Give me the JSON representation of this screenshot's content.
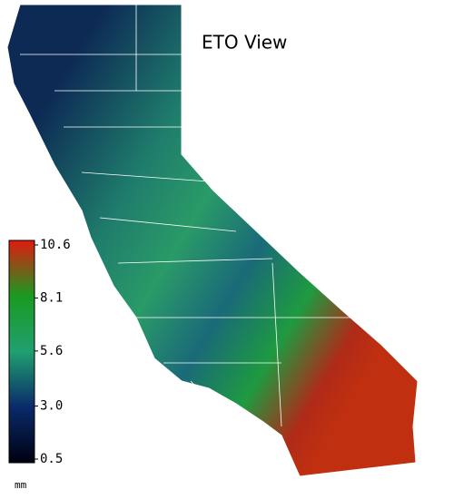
{
  "title": "ETO View",
  "legend": {
    "unit": "mm",
    "ticks": [
      10.6,
      8.1,
      5.6,
      {
        "value": 3,
        "label": "3.0"
      },
      0.5
    ]
  }
}
